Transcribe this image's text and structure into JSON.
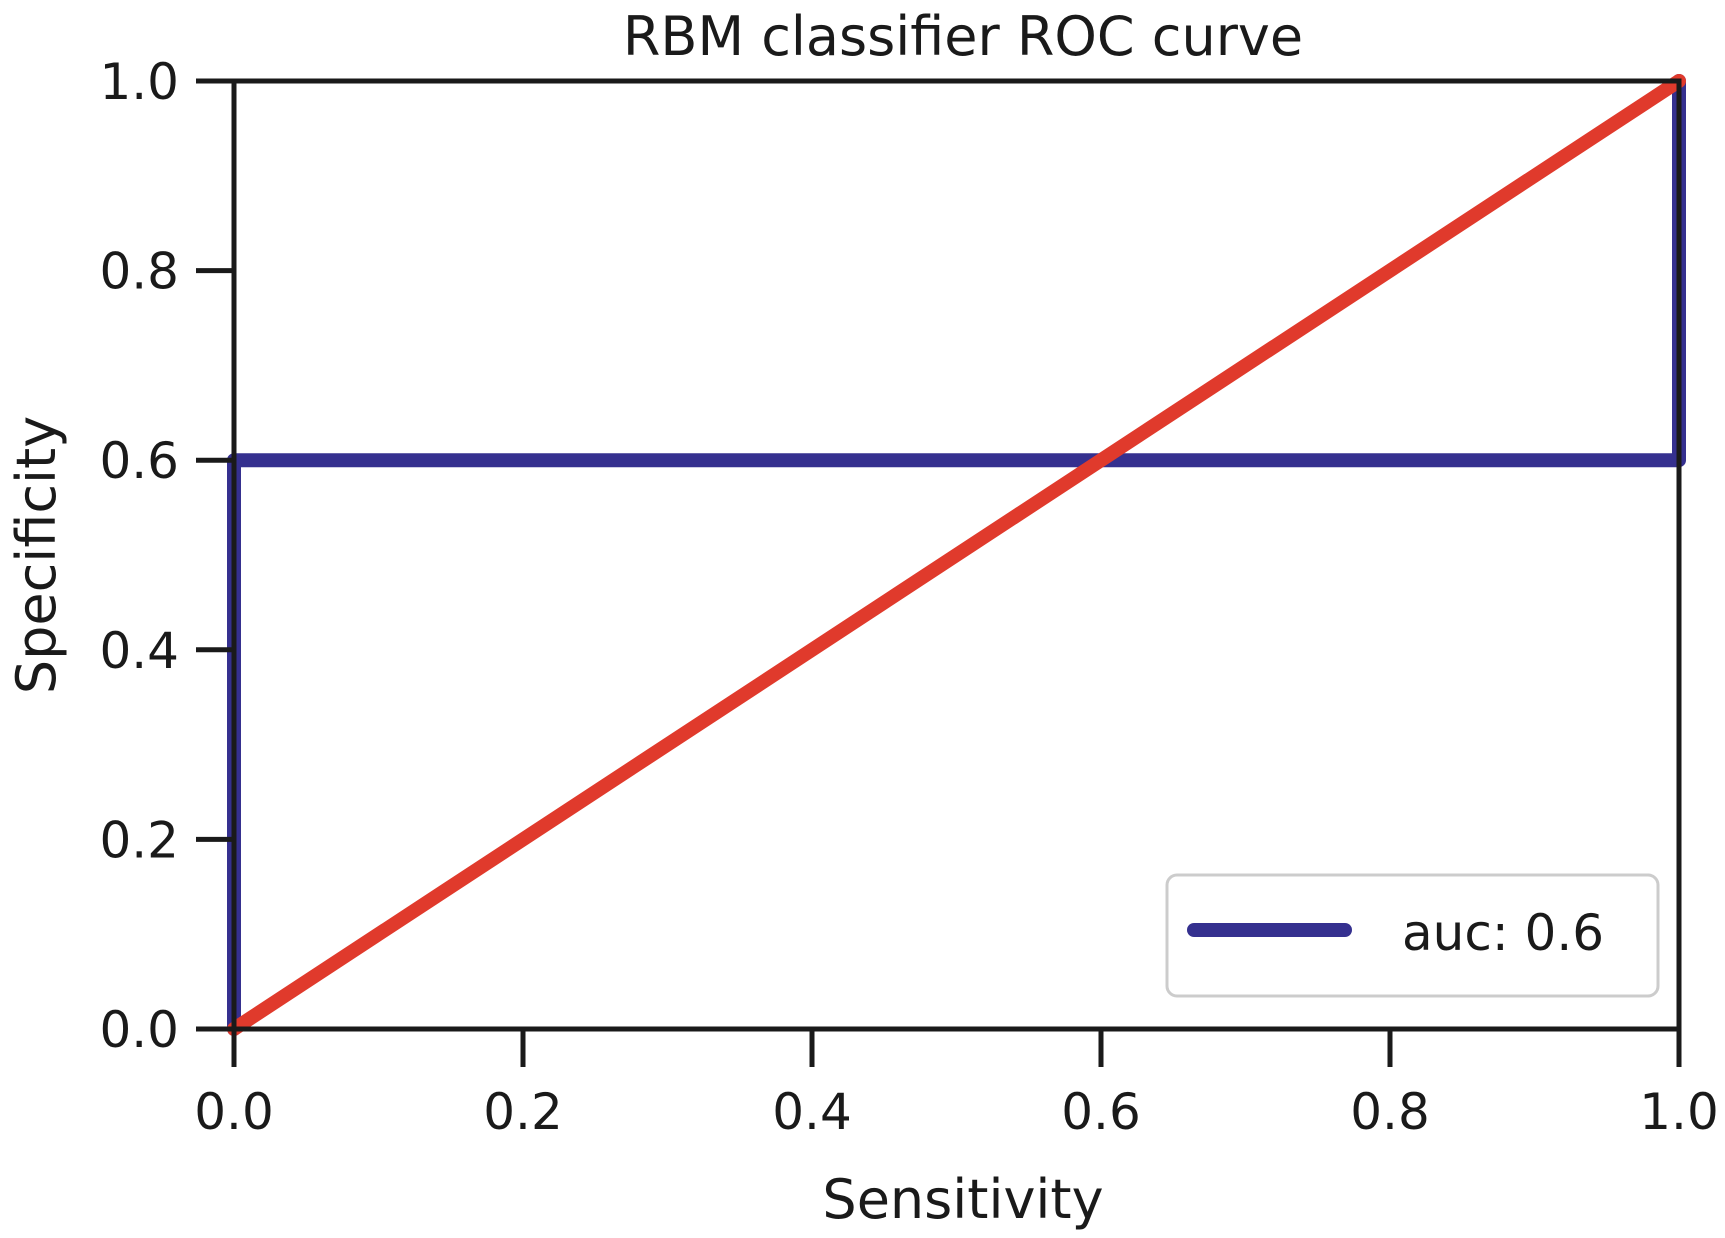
{
  "chart_data": {
    "type": "line",
    "title": "RBM classifier ROC curve",
    "xlabel": "Sensitivity",
    "ylabel": "Specificity",
    "xlim": [
      0.0,
      1.0
    ],
    "ylim": [
      0.0,
      1.0
    ],
    "xticks": [
      "0.0",
      "0.2",
      "0.4",
      "0.6",
      "0.8",
      "1.0"
    ],
    "yticks": [
      "0.0",
      "0.2",
      "0.4",
      "0.6",
      "0.8",
      "1.0"
    ],
    "grid": false,
    "legend_position": "lower-right",
    "series": [
      {
        "name": "auc: 0.6",
        "color": "#35308f",
        "x": [
          0.0,
          0.0,
          1.0,
          1.0
        ],
        "y": [
          0.0,
          0.6,
          0.6,
          1.0
        ]
      },
      {
        "color": "#e03a2c",
        "x": [
          0.0,
          1.0
        ],
        "y": [
          0.0,
          1.0
        ]
      }
    ]
  }
}
